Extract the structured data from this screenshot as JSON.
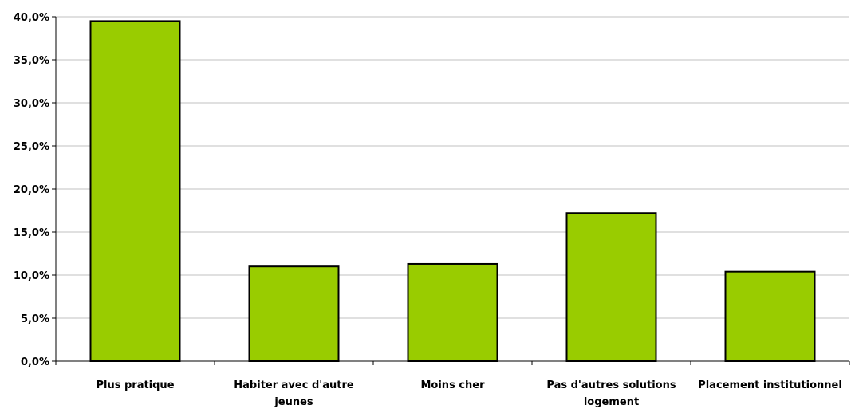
{
  "chart_data": {
    "type": "bar",
    "categories": [
      [
        "Plus pratique"
      ],
      [
        "Habiter avec d'autre",
        "jeunes"
      ],
      [
        "Moins cher"
      ],
      [
        "Pas d'autres solutions",
        "logement"
      ],
      [
        "Placement institutionnel"
      ]
    ],
    "values": [
      39.5,
      11.0,
      11.3,
      17.2,
      10.4
    ],
    "ylim": [
      0,
      40
    ],
    "yticks": [
      "0,0%",
      "5,0%",
      "10,0%",
      "15,0%",
      "20,0%",
      "25,0%",
      "30,0%",
      "35,0%",
      "40,0%"
    ],
    "grid": true,
    "bar_color": "#99cc00",
    "bar_edge_color": "#000000",
    "grid_color": "#c0c0c0",
    "title": "",
    "xlabel": "",
    "ylabel": ""
  }
}
